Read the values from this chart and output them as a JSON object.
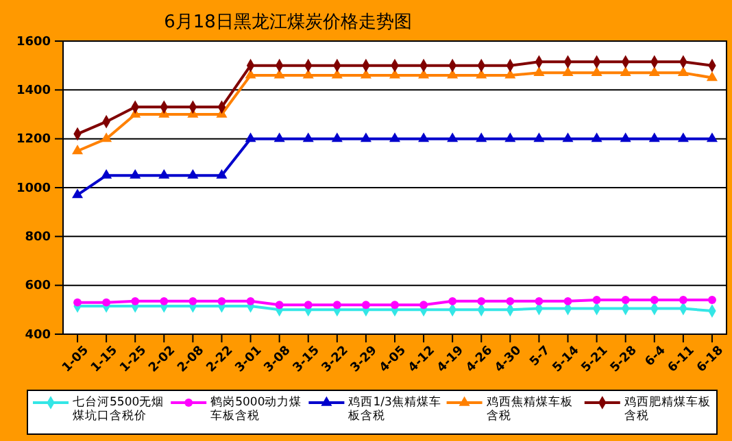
{
  "chart_data": {
    "type": "line",
    "title": "6月18日黑龙江煤炭价格走势图",
    "categories": [
      "1-05",
      "1-15",
      "1-25",
      "2-02",
      "2-08",
      "2-22",
      "3-01",
      "3-08",
      "3-15",
      "3-22",
      "3-29",
      "4-05",
      "4-12",
      "4-19",
      "4-26",
      "4-30",
      "5-7",
      "5-14",
      "5-21",
      "5-28",
      "6-4",
      "6-11",
      "6-18"
    ],
    "series": [
      {
        "name": "七台河5500无烟煤坑口含税价",
        "color": "#33e6e6",
        "marker": "diamond",
        "values": [
          515,
          515,
          515,
          515,
          515,
          515,
          515,
          500,
          500,
          500,
          500,
          500,
          500,
          500,
          500,
          500,
          505,
          505,
          505,
          505,
          505,
          505,
          495
        ]
      },
      {
        "name": "鹤岗5000动力煤车板含税",
        "color": "#ff00ff",
        "marker": "circle",
        "values": [
          530,
          530,
          535,
          535,
          535,
          535,
          535,
          520,
          520,
          520,
          520,
          520,
          520,
          535,
          535,
          535,
          535,
          535,
          540,
          540,
          540,
          540,
          540
        ]
      },
      {
        "name": "鸡西1/3焦精煤车板含税",
        "color": "#0000cc",
        "marker": "triangle",
        "values": [
          970,
          1050,
          1050,
          1050,
          1050,
          1050,
          1200,
          1200,
          1200,
          1200,
          1200,
          1200,
          1200,
          1200,
          1200,
          1200,
          1200,
          1200,
          1200,
          1200,
          1200,
          1200,
          1200
        ]
      },
      {
        "name": "鸡西焦精煤车板含税",
        "color": "#ff8000",
        "marker": "triangle",
        "values": [
          1150,
          1200,
          1300,
          1300,
          1300,
          1300,
          1460,
          1460,
          1460,
          1460,
          1460,
          1460,
          1460,
          1460,
          1460,
          1460,
          1470,
          1470,
          1470,
          1470,
          1470,
          1470,
          1450
        ]
      },
      {
        "name": "鸡西肥精煤车板含税",
        "color": "#800000",
        "marker": "diamond",
        "values": [
          1220,
          1270,
          1330,
          1330,
          1330,
          1330,
          1500,
          1500,
          1500,
          1500,
          1500,
          1500,
          1500,
          1500,
          1500,
          1500,
          1515,
          1515,
          1515,
          1515,
          1515,
          1515,
          1500
        ]
      }
    ],
    "ylim": [
      400,
      1600
    ],
    "yticks": [
      400,
      600,
      800,
      1000,
      1200,
      1400,
      1600
    ],
    "grid": "y",
    "legend": "bottom"
  }
}
